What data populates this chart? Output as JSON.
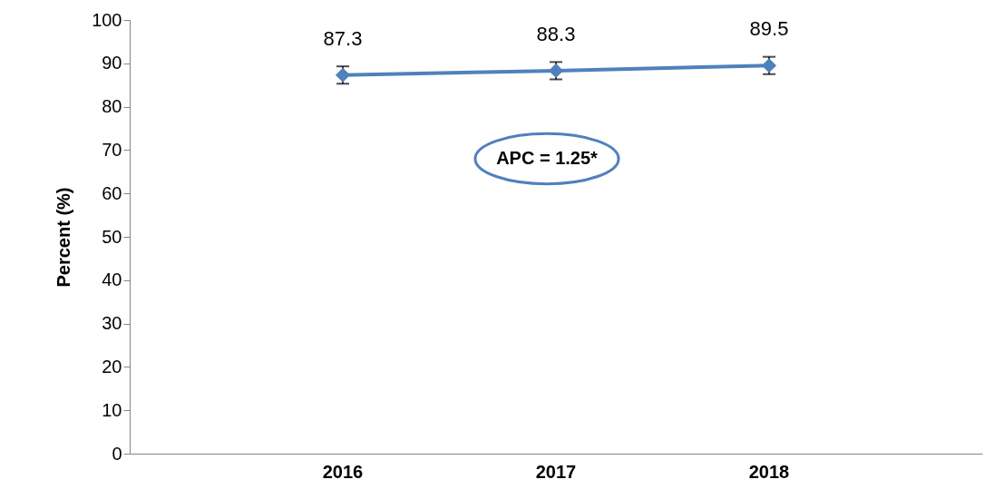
{
  "chart_data": {
    "type": "line",
    "ylabel": "Percent (%)",
    "categories": [
      "2016",
      "2017",
      "2018"
    ],
    "series": [
      {
        "color": "#4f81bd",
        "values": [
          87.3,
          88.3,
          89.5
        ],
        "errors": [
          2,
          2,
          2
        ]
      }
    ],
    "ylim": [
      0,
      100
    ],
    "yticks": [
      0,
      10,
      20,
      30,
      40,
      50,
      60,
      70,
      80,
      90,
      100
    ],
    "data_labels": true,
    "marker": "diamond",
    "line_style": "solid",
    "grid": false,
    "legend": false,
    "annotations": [
      "APC = 1.25*"
    ]
  }
}
